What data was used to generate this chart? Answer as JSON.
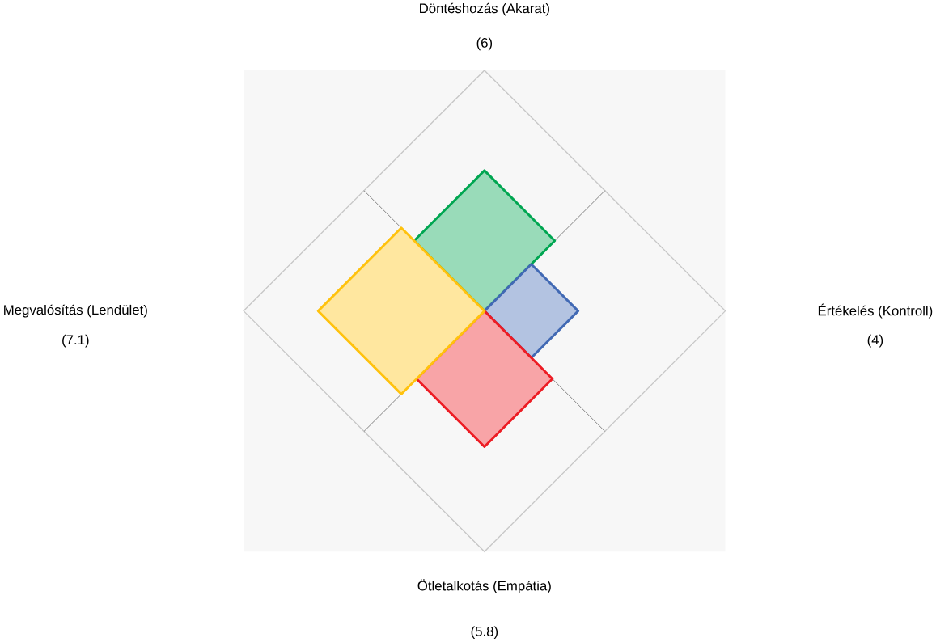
{
  "chart_data": {
    "type": "other",
    "categories": [
      "Döntéshozás (Akarat)",
      "Értékelés (Kontroll)",
      "Ötletalkotás (Empátia)",
      "Megvalósítás (Lendület)"
    ],
    "values": [
      6,
      4,
      5.8,
      7.1
    ],
    "value_labels": [
      "(6)",
      "(4)",
      "(5.8)",
      "(7.1)"
    ],
    "colors": [
      "#00a651",
      "#4169b4",
      "#ed1c24",
      "#ffc20e"
    ]
  }
}
